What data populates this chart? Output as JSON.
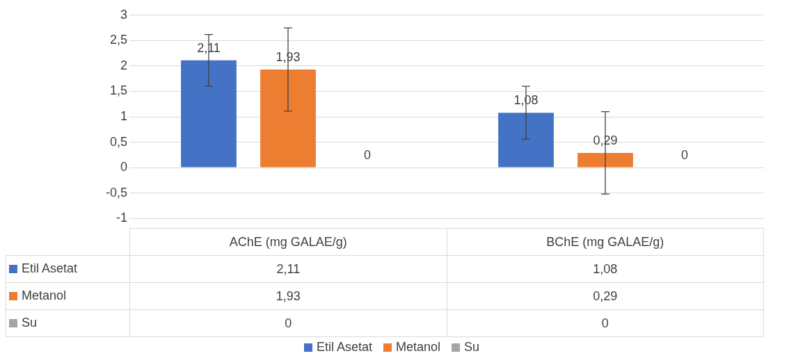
{
  "chart_data": {
    "type": "bar",
    "categories": [
      "AChE (mg GALAE/g)",
      "BChE (mg GALAE/g)"
    ],
    "series": [
      {
        "name": "Etil Asetat",
        "color": "#4472c4",
        "values": [
          2.11,
          1.08
        ],
        "value_labels": [
          "2,11",
          "1,08"
        ],
        "errors": [
          0.51,
          0.52
        ]
      },
      {
        "name": "Metanol",
        "color": "#ed7d31",
        "values": [
          1.93,
          0.29
        ],
        "value_labels": [
          "1,93",
          "0,29"
        ],
        "errors": [
          0.82,
          0.81
        ]
      },
      {
        "name": "Su",
        "color": "#a5a5a5",
        "values": [
          0,
          0
        ],
        "value_labels": [
          "0",
          "0"
        ]
      }
    ],
    "ylim": [
      -1,
      3
    ],
    "yticks": [
      {
        "value": -1,
        "label": "-1"
      },
      {
        "value": -0.5,
        "label": "-0,5"
      },
      {
        "value": 0,
        "label": "0"
      },
      {
        "value": 0.5,
        "label": "0,5"
      },
      {
        "value": 1,
        "label": "1"
      },
      {
        "value": 1.5,
        "label": "1,5"
      },
      {
        "value": 2,
        "label": "2"
      },
      {
        "value": 2.5,
        "label": "2,5"
      },
      {
        "value": 3,
        "label": "3"
      }
    ],
    "grid": "y",
    "legend": "bottom"
  }
}
